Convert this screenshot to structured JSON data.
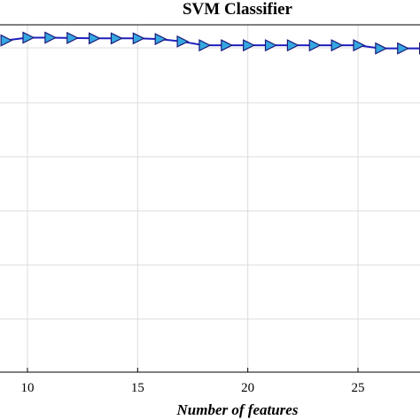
{
  "chart_data": {
    "type": "line",
    "title": "SVM Classifier",
    "xlabel": "Number of features",
    "ylabel": "",
    "xlim": [
      8.8,
      27.9
    ],
    "ylim": [
      0,
      1
    ],
    "x_ticks": [
      10,
      15,
      20,
      25
    ],
    "x_tick_labels": [
      "10",
      "15",
      "20",
      "25"
    ],
    "grid": true,
    "series": [
      {
        "marker": "triangle-right",
        "line_color": "#1f1fbf",
        "marker_fill": "#35a8e0",
        "marker_edge": "#1a1a7a",
        "points": [
          {
            "x": 9,
            "y": 0.955
          },
          {
            "x": 10,
            "y": 0.963
          },
          {
            "x": 11,
            "y": 0.963
          },
          {
            "x": 12,
            "y": 0.962
          },
          {
            "x": 13,
            "y": 0.961
          },
          {
            "x": 14,
            "y": 0.961
          },
          {
            "x": 15,
            "y": 0.961
          },
          {
            "x": 16,
            "y": 0.959
          },
          {
            "x": 17,
            "y": 0.952
          },
          {
            "x": 18,
            "y": 0.941
          },
          {
            "x": 19,
            "y": 0.941
          },
          {
            "x": 20,
            "y": 0.941
          },
          {
            "x": 21,
            "y": 0.941
          },
          {
            "x": 22,
            "y": 0.941
          },
          {
            "x": 23,
            "y": 0.941
          },
          {
            "x": 24,
            "y": 0.941
          },
          {
            "x": 25,
            "y": 0.941
          },
          {
            "x": 26,
            "y": 0.932
          },
          {
            "x": 27,
            "y": 0.932
          },
          {
            "x": 28,
            "y": 0.932
          }
        ]
      }
    ]
  }
}
